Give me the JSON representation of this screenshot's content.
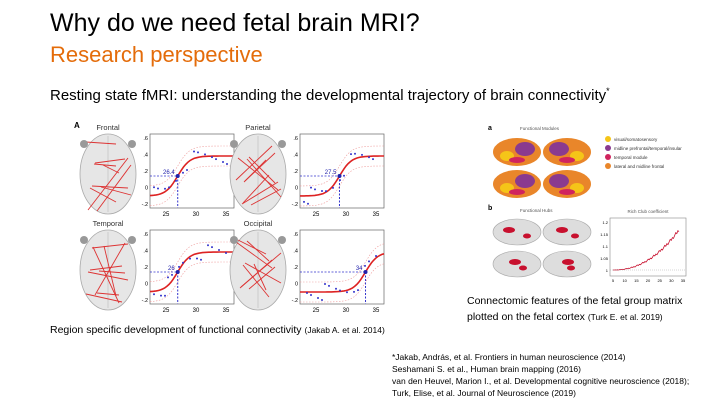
{
  "title": "Why do we need fetal brain MRI?",
  "subtitle": "Research perspective",
  "heading": {
    "text": "Resting state fMRI: understanding the developmental trajectory of brain connectivity",
    "mark": "*"
  },
  "left_figure": {
    "panel": "A",
    "regions": [
      {
        "name": "Frontal",
        "age": "26.4"
      },
      {
        "name": "Parietal",
        "age": "27.5"
      },
      {
        "name": "Temporal",
        "age": "26"
      },
      {
        "name": "Occipital",
        "age": "34"
      }
    ],
    "x_ticks": [
      "25",
      "30",
      "35"
    ],
    "y_ticks": [
      ".6",
      ".4",
      ".2",
      "0",
      "-.2"
    ]
  },
  "left_caption": {
    "text": "Region specific development of functional connectivity",
    "cite": "(Jakab A. et al. 2014)"
  },
  "right_figure": {
    "panel_a": "a",
    "modules_title": "Functional Modules",
    "legend": [
      "visual/somatosensory",
      "midline prefrontal/temporal/insular",
      "temporal module",
      "lateral and midline frontal"
    ],
    "panel_b": "b",
    "hubs_title": "Functional Hubs",
    "rich_club_title": "Rich Club coefficient",
    "y_ticks": [
      "1.2",
      "1.15",
      "1.1",
      "1.05",
      "1"
    ],
    "x_ticks": [
      "5",
      "10",
      "15",
      "20",
      "25",
      "30",
      "35"
    ]
  },
  "right_caption": {
    "line1": "Connectomic features of the fetal group matrix",
    "line2": "plotted on the fetal cortex",
    "cite": "(Turk E. et al. 2019)"
  },
  "references": [
    "*Jakab, András, et al. Frontiers in human neuroscience (2014)",
    "Seshamani S. et al., Human brain mapping (2016)",
    "van den Heuvel, Marion I., et al. Developmental cognitive neuroscience (2018);",
    "Turk, Elise, et al. Journal of Neuroscience (2019)"
  ]
}
